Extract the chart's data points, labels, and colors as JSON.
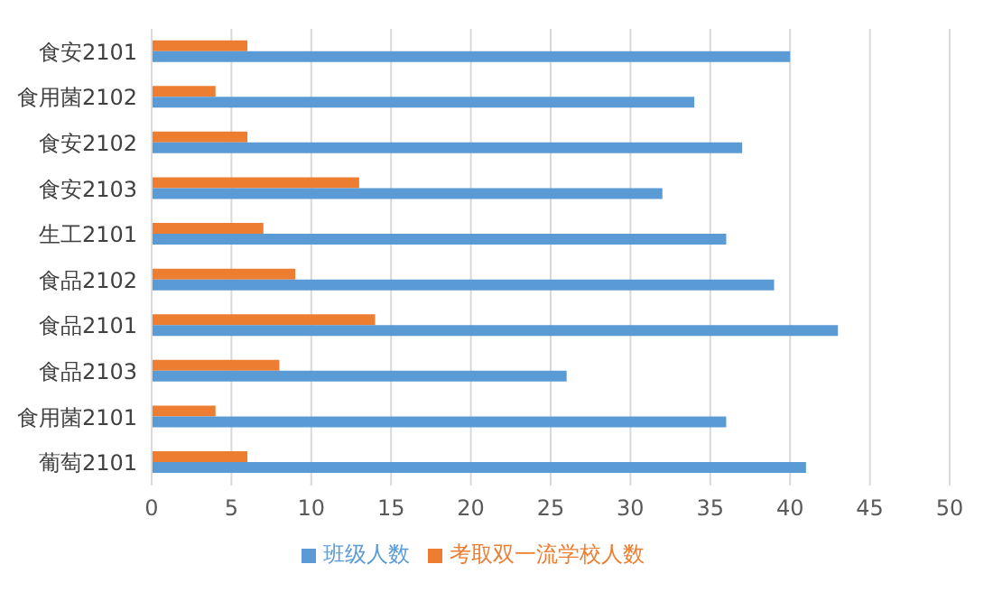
{
  "chart_data": {
    "type": "bar",
    "orientation": "horizontal",
    "categories": [
      "食安2101",
      "食用菌2102",
      "食安2102",
      "食安2103",
      "生工2101",
      "食品2102",
      "食品2101",
      "食品2103",
      "食用菌2101",
      "葡萄2101"
    ],
    "series": [
      {
        "name": "考取双一流学校人数",
        "color": "#ed7d31",
        "values": [
          6,
          4,
          6,
          13,
          7,
          9,
          14,
          8,
          4,
          6
        ]
      },
      {
        "name": "班级人数",
        "color": "#5b9bd5",
        "values": [
          40,
          34,
          37,
          32,
          36,
          39,
          43,
          26,
          36,
          41
        ]
      }
    ],
    "xlim": [
      0,
      50
    ],
    "xticks": [
      0,
      5,
      10,
      15,
      20,
      25,
      30,
      35,
      40,
      45,
      50
    ],
    "grid": "x",
    "legend": "bottom"
  }
}
